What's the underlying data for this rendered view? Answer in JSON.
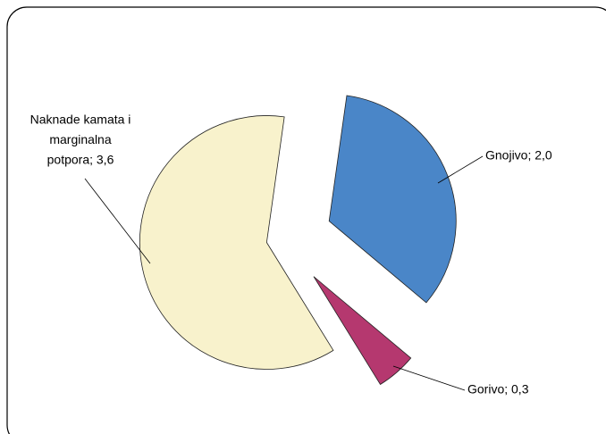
{
  "chart_data": {
    "type": "pie",
    "values": [
      2.0,
      0.3,
      3.6
    ],
    "value_labels": [
      [
        "Gnojivo; 2,0"
      ],
      [
        "Gorivo; 0,3"
      ],
      [
        "Naknade kamata i",
        "marginalna",
        "potpora; 3,6"
      ]
    ],
    "colors": [
      "#4a86c8",
      "#b5386f",
      "#f8f2cc"
    ]
  }
}
